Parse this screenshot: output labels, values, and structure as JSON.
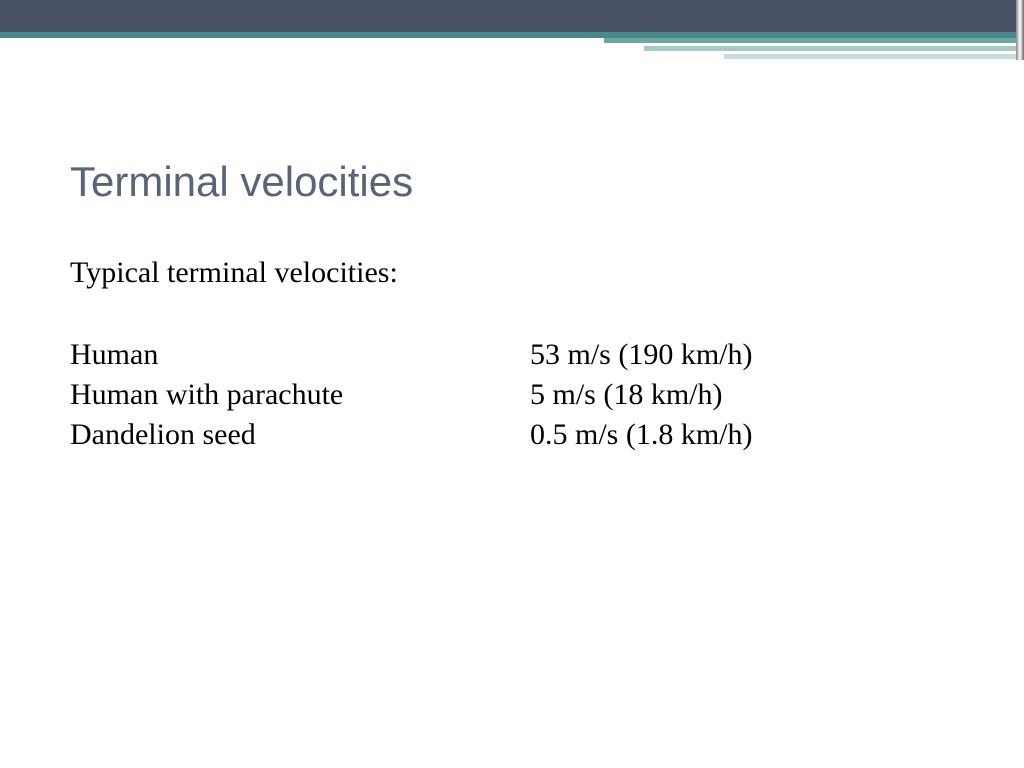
{
  "header": {
    "dark_band_color": "#4a5266",
    "teal_band_color": "#4a8a8a",
    "accent_colors": [
      "#6ba5a5",
      "#a8c8c8",
      "#c8dcdc"
    ]
  },
  "slide": {
    "title": "Terminal velocities",
    "title_color": "#5a6478",
    "title_fontsize": 42,
    "subtitle": "Typical terminal velocities:",
    "subtitle_fontsize": 30,
    "body_color": "#000000",
    "background_color": "#ffffff"
  },
  "velocities": [
    {
      "label": "Human",
      "value": "53 m/s (190 km/h)"
    },
    {
      "label": "Human with parachute",
      "value": "5 m/s (18 km/h)"
    },
    {
      "label": "Dandelion seed",
      "value": "0.5 m/s (1.8 km/h)"
    }
  ]
}
